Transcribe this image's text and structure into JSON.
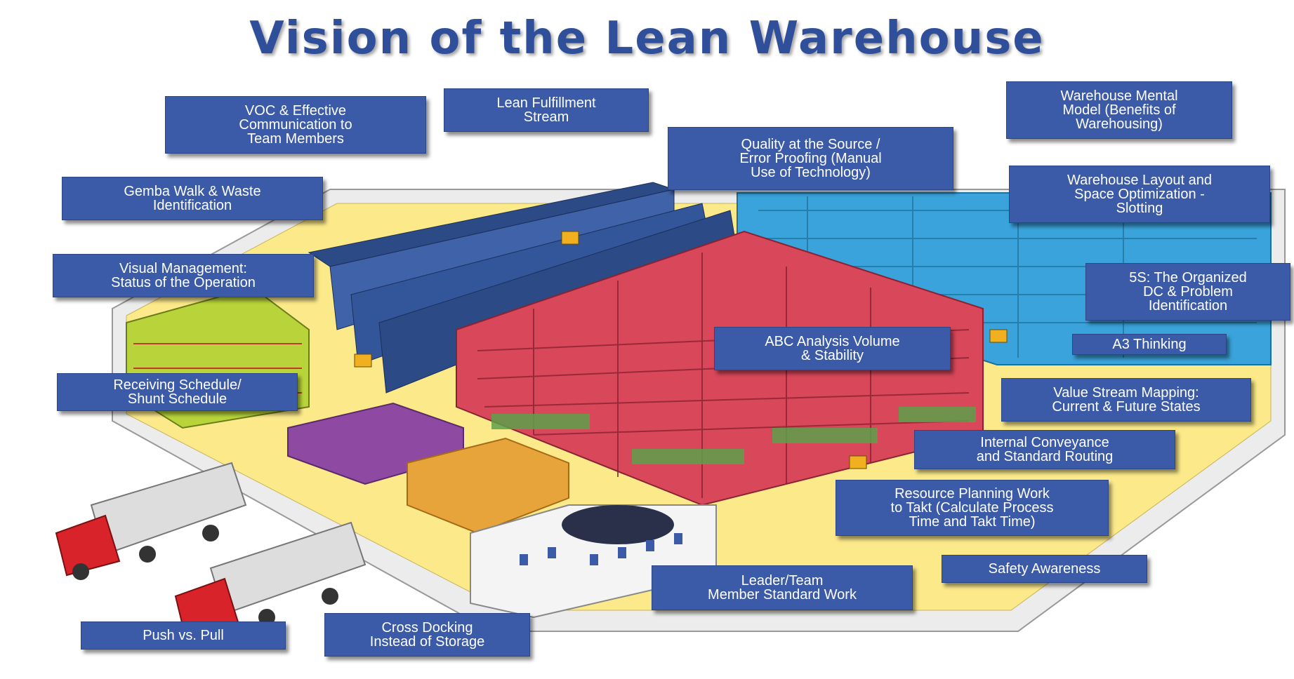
{
  "title": "Vision of the Lean Warehouse",
  "labels": {
    "voc": "VOC & Effective\nCommunication to\nTeam Members",
    "lean_fulfillment": "Lean Fulfillment\nStream",
    "mental_model": "Warehouse Mental\nModel (Benefits of\nWarehousing)",
    "quality_source": "Quality at the Source /\nError Proofing (Manual\nUse of Technology)",
    "gemba": "Gemba Walk & Waste\nIdentification",
    "layout": "Warehouse Layout and\nSpace Optimization -\nSlotting",
    "visual_mgmt": "Visual Management:\nStatus of the Operation",
    "five_s": "5S: The Organized\nDC & Problem\nIdentification",
    "abc": "ABC Analysis Volume\n& Stability",
    "a3": "A3 Thinking",
    "receiving": "Receiving Schedule/\nShunt Schedule",
    "vsm": "Value Stream Mapping:\nCurrent & Future States",
    "conveyance": "Internal Conveyance\nand Standard Routing",
    "resource": "Resource Planning Work\nto Takt (Calculate Process\nTime and Takt Time)",
    "safety": "Safety Awareness",
    "leader": "Leader/Team\nMember Standard Work",
    "push_pull": "Push vs. Pull",
    "cross_dock": "Cross Docking\nInstead of Storage"
  },
  "colors": {
    "label_bg": "#3b5ba8",
    "title": "#2f4f9a",
    "floor": "#fbe98a",
    "red_racks": "#d9475a",
    "blue_racks": "#3aa3db",
    "green_racks": "#b9d43a",
    "purple_pallets": "#8e4aa3",
    "orange_pallets": "#e7a43a",
    "trucks": "#d8232a"
  }
}
